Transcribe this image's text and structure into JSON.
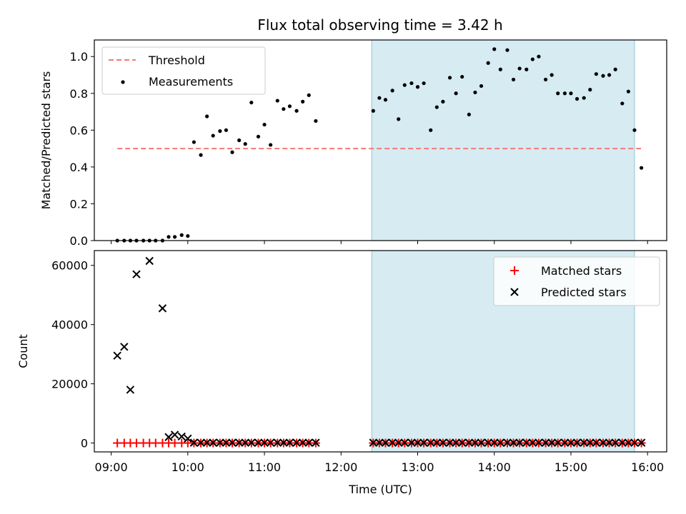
{
  "title": "Flux total observing time = 3.42 h",
  "colors": {
    "threshold": "#f47a7a",
    "measurement": "#000000",
    "matched": "#ff0000",
    "predicted": "#000000",
    "span": "#add8e6"
  },
  "chart_data": [
    {
      "type": "scatter",
      "ylabel": "Matched/Predicted stars",
      "ylim": [
        0,
        1.09
      ],
      "xlim": [
        8.78,
        16.25
      ],
      "yticks": [
        0.0,
        0.2,
        0.4,
        0.6,
        0.8,
        1.0
      ],
      "ytick_labels": [
        "0.0",
        "0.2",
        "0.4",
        "0.6",
        "0.8",
        "1.0"
      ],
      "legend": {
        "placement": "top-left",
        "entries": [
          {
            "label": "Threshold",
            "marker": "dashed-line"
          },
          {
            "label": "Measurements",
            "marker": "dot"
          }
        ]
      },
      "span": [
        12.4,
        15.83
      ],
      "threshold": {
        "value": 0.5,
        "x_start": 9.08,
        "x_end": 15.92
      },
      "measurements": {
        "x": [
          9.08,
          9.17,
          9.25,
          9.33,
          9.42,
          9.5,
          9.58,
          9.67,
          9.75,
          9.83,
          9.92,
          10.0,
          10.08,
          10.17,
          10.25,
          10.33,
          10.42,
          10.5,
          10.58,
          10.67,
          10.75,
          10.83,
          10.92,
          11.0,
          11.08,
          11.17,
          11.25,
          11.33,
          11.42,
          11.5,
          11.58,
          11.67,
          12.42,
          12.5,
          12.58,
          12.67,
          12.75,
          12.83,
          12.92,
          13.0,
          13.08,
          13.17,
          13.25,
          13.33,
          13.42,
          13.5,
          13.58,
          13.67,
          13.75,
          13.83,
          13.92,
          14.0,
          14.08,
          14.17,
          14.25,
          14.33,
          14.42,
          14.5,
          14.58,
          14.67,
          14.75,
          14.83,
          14.92,
          15.0,
          15.08,
          15.17,
          15.25,
          15.33,
          15.42,
          15.5,
          15.58,
          15.67,
          15.75,
          15.83,
          15.92
        ],
        "y": [
          0.0,
          0.0,
          0.0,
          0.0,
          0.0,
          0.0,
          0.0,
          0.0,
          0.02,
          0.02,
          0.03,
          0.025,
          0.535,
          0.465,
          0.675,
          0.57,
          0.595,
          0.6,
          0.48,
          0.545,
          0.525,
          0.75,
          0.565,
          0.63,
          0.52,
          0.76,
          0.715,
          0.73,
          0.705,
          0.755,
          0.79,
          0.65,
          0.705,
          0.775,
          0.765,
          0.815,
          0.66,
          0.845,
          0.855,
          0.835,
          0.855,
          0.6,
          0.725,
          0.755,
          0.885,
          0.8,
          0.89,
          0.685,
          0.805,
          0.84,
          0.965,
          1.04,
          0.93,
          1.035,
          0.875,
          0.935,
          0.93,
          0.985,
          1.0,
          0.875,
          0.9,
          0.8,
          0.8,
          0.8,
          0.77,
          0.775,
          0.82,
          0.905,
          0.895,
          0.9,
          0.93,
          0.745,
          0.81,
          0.6,
          0.395
        ]
      }
    },
    {
      "type": "scatter",
      "ylabel": "Count",
      "xlabel": "Time (UTC)",
      "ylim": [
        -3000,
        65000
      ],
      "xlim": [
        8.78,
        16.25
      ],
      "yticks": [
        0,
        20000,
        40000,
        60000
      ],
      "ytick_labels": [
        "0",
        "20000",
        "40000",
        "60000"
      ],
      "xticks": [
        9,
        10,
        11,
        12,
        13,
        14,
        15,
        16
      ],
      "xtick_labels": [
        "09:00",
        "10:00",
        "11:00",
        "12:00",
        "13:00",
        "14:00",
        "15:00",
        "16:00"
      ],
      "legend": {
        "placement": "top-right",
        "entries": [
          {
            "label": "Matched stars",
            "marker": "plus"
          },
          {
            "label": "Predicted stars",
            "marker": "x"
          }
        ]
      },
      "span": [
        12.4,
        15.83
      ],
      "matched": {
        "x": [
          9.08,
          9.17,
          9.25,
          9.33,
          9.42,
          9.5,
          9.58,
          9.67,
          9.75,
          9.83,
          9.92,
          10.0,
          10.08,
          10.17,
          10.25,
          10.33,
          10.42,
          10.5,
          10.58,
          10.67,
          10.75,
          10.83,
          10.92,
          11.0,
          11.08,
          11.17,
          11.25,
          11.33,
          11.42,
          11.5,
          11.58,
          11.67,
          12.42,
          12.5,
          12.58,
          12.67,
          12.75,
          12.83,
          12.92,
          13.0,
          13.08,
          13.17,
          13.25,
          13.33,
          13.42,
          13.5,
          13.58,
          13.67,
          13.75,
          13.83,
          13.92,
          14.0,
          14.08,
          14.17,
          14.25,
          14.33,
          14.42,
          14.5,
          14.58,
          14.67,
          14.75,
          14.83,
          14.92,
          15.0,
          15.08,
          15.17,
          15.25,
          15.33,
          15.42,
          15.5,
          15.58,
          15.67,
          15.75,
          15.83,
          15.92
        ],
        "y": [
          0,
          0,
          0,
          0,
          0,
          0,
          0,
          0,
          0,
          0,
          0,
          0,
          0,
          0,
          0,
          0,
          0,
          0,
          0,
          0,
          0,
          0,
          0,
          0,
          0,
          0,
          0,
          0,
          0,
          0,
          0,
          0,
          0,
          0,
          0,
          0,
          0,
          0,
          0,
          0,
          0,
          0,
          0,
          0,
          0,
          0,
          0,
          0,
          0,
          0,
          0,
          0,
          0,
          0,
          0,
          0,
          0,
          0,
          0,
          0,
          0,
          0,
          0,
          0,
          0,
          0,
          0,
          0,
          0,
          0,
          0,
          0,
          0,
          0,
          0
        ]
      },
      "predicted": {
        "x": [
          9.08,
          9.17,
          9.25,
          9.33,
          9.5,
          9.67,
          9.75,
          9.83,
          9.92,
          10.0,
          10.08,
          10.17,
          10.25,
          10.33,
          10.42,
          10.5,
          10.58,
          10.67,
          10.75,
          10.83,
          10.92,
          11.0,
          11.08,
          11.17,
          11.25,
          11.33,
          11.42,
          11.5,
          11.58,
          11.67,
          12.42,
          12.5,
          12.58,
          12.67,
          12.75,
          12.83,
          12.92,
          13.0,
          13.08,
          13.17,
          13.25,
          13.33,
          13.42,
          13.5,
          13.58,
          13.67,
          13.75,
          13.83,
          13.92,
          14.0,
          14.08,
          14.17,
          14.25,
          14.33,
          14.42,
          14.5,
          14.58,
          14.67,
          14.75,
          14.83,
          14.92,
          15.0,
          15.08,
          15.17,
          15.25,
          15.33,
          15.42,
          15.5,
          15.58,
          15.67,
          15.75,
          15.83,
          15.92
        ],
        "y": [
          29500,
          32500,
          18000,
          57000,
          61500,
          45500,
          2000,
          2800,
          2200,
          1500,
          100,
          100,
          100,
          100,
          100,
          100,
          100,
          100,
          100,
          100,
          100,
          100,
          100,
          100,
          100,
          100,
          100,
          100,
          100,
          100,
          100,
          100,
          100,
          100,
          100,
          100,
          100,
          100,
          100,
          100,
          100,
          100,
          100,
          100,
          100,
          100,
          100,
          100,
          100,
          100,
          100,
          100,
          100,
          100,
          100,
          100,
          100,
          100,
          100,
          100,
          100,
          100,
          100,
          100,
          100,
          100,
          100,
          100,
          100,
          100,
          100,
          100,
          100
        ]
      }
    }
  ]
}
